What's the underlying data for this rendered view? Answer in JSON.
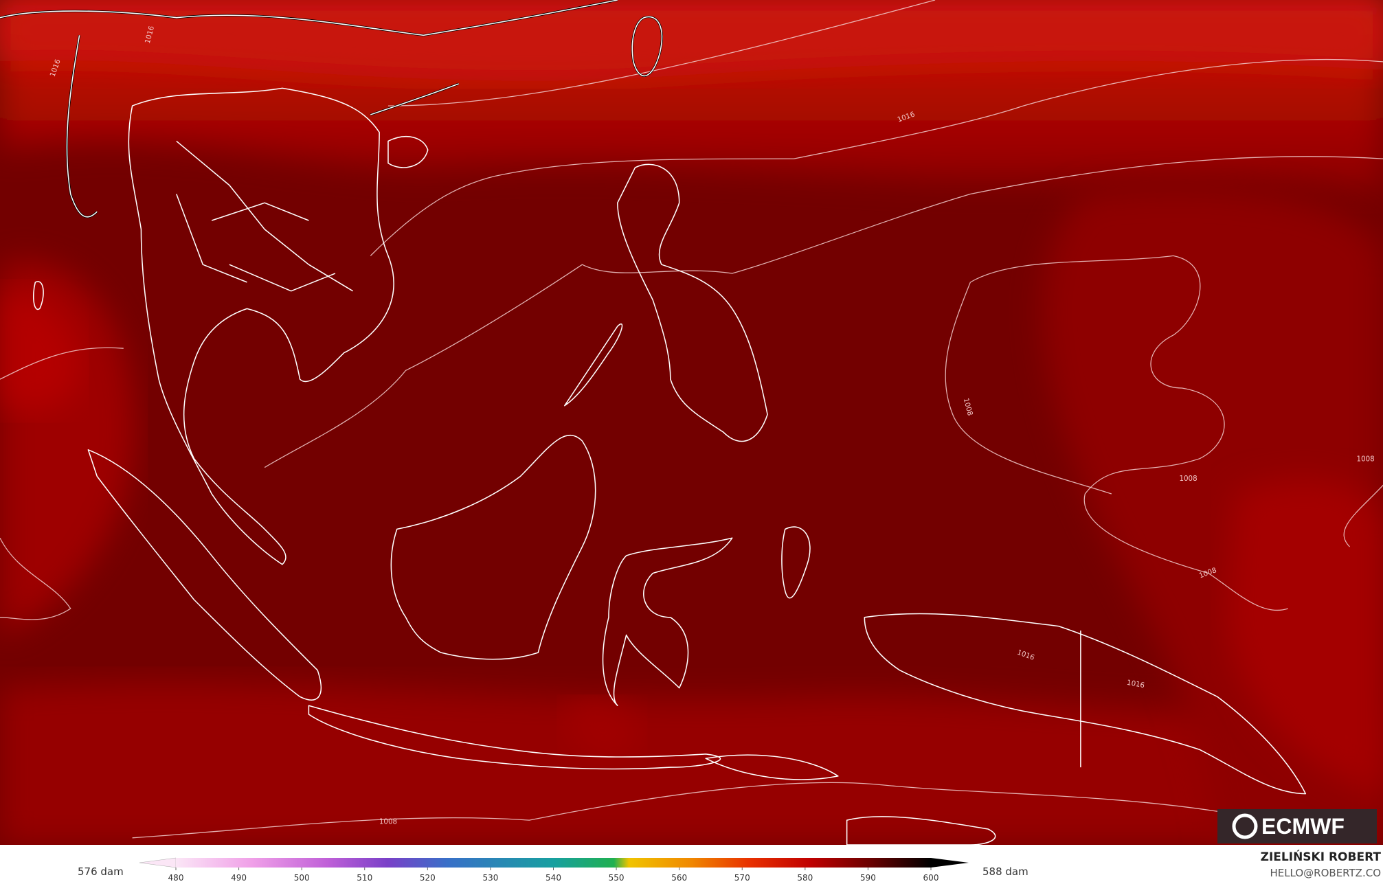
{
  "colorbar": {
    "left_label": "576 dam",
    "right_label": "588 dam",
    "ticks": [
      480,
      490,
      500,
      510,
      520,
      530,
      540,
      550,
      560,
      570,
      580,
      590,
      600
    ]
  },
  "contour_labels": [
    {
      "text": "1016"
    },
    {
      "text": "1016"
    },
    {
      "text": "1016"
    },
    {
      "text": "1016"
    },
    {
      "text": "1016"
    },
    {
      "text": "1008"
    },
    {
      "text": "1008"
    },
    {
      "text": "1008"
    },
    {
      "text": "1008"
    },
    {
      "text": "1008"
    }
  ],
  "logo": "ECMWF",
  "credit": {
    "name": "ZIELIŃSKI ROBERT",
    "email": "HELLO@ROBERTZ.CO"
  }
}
